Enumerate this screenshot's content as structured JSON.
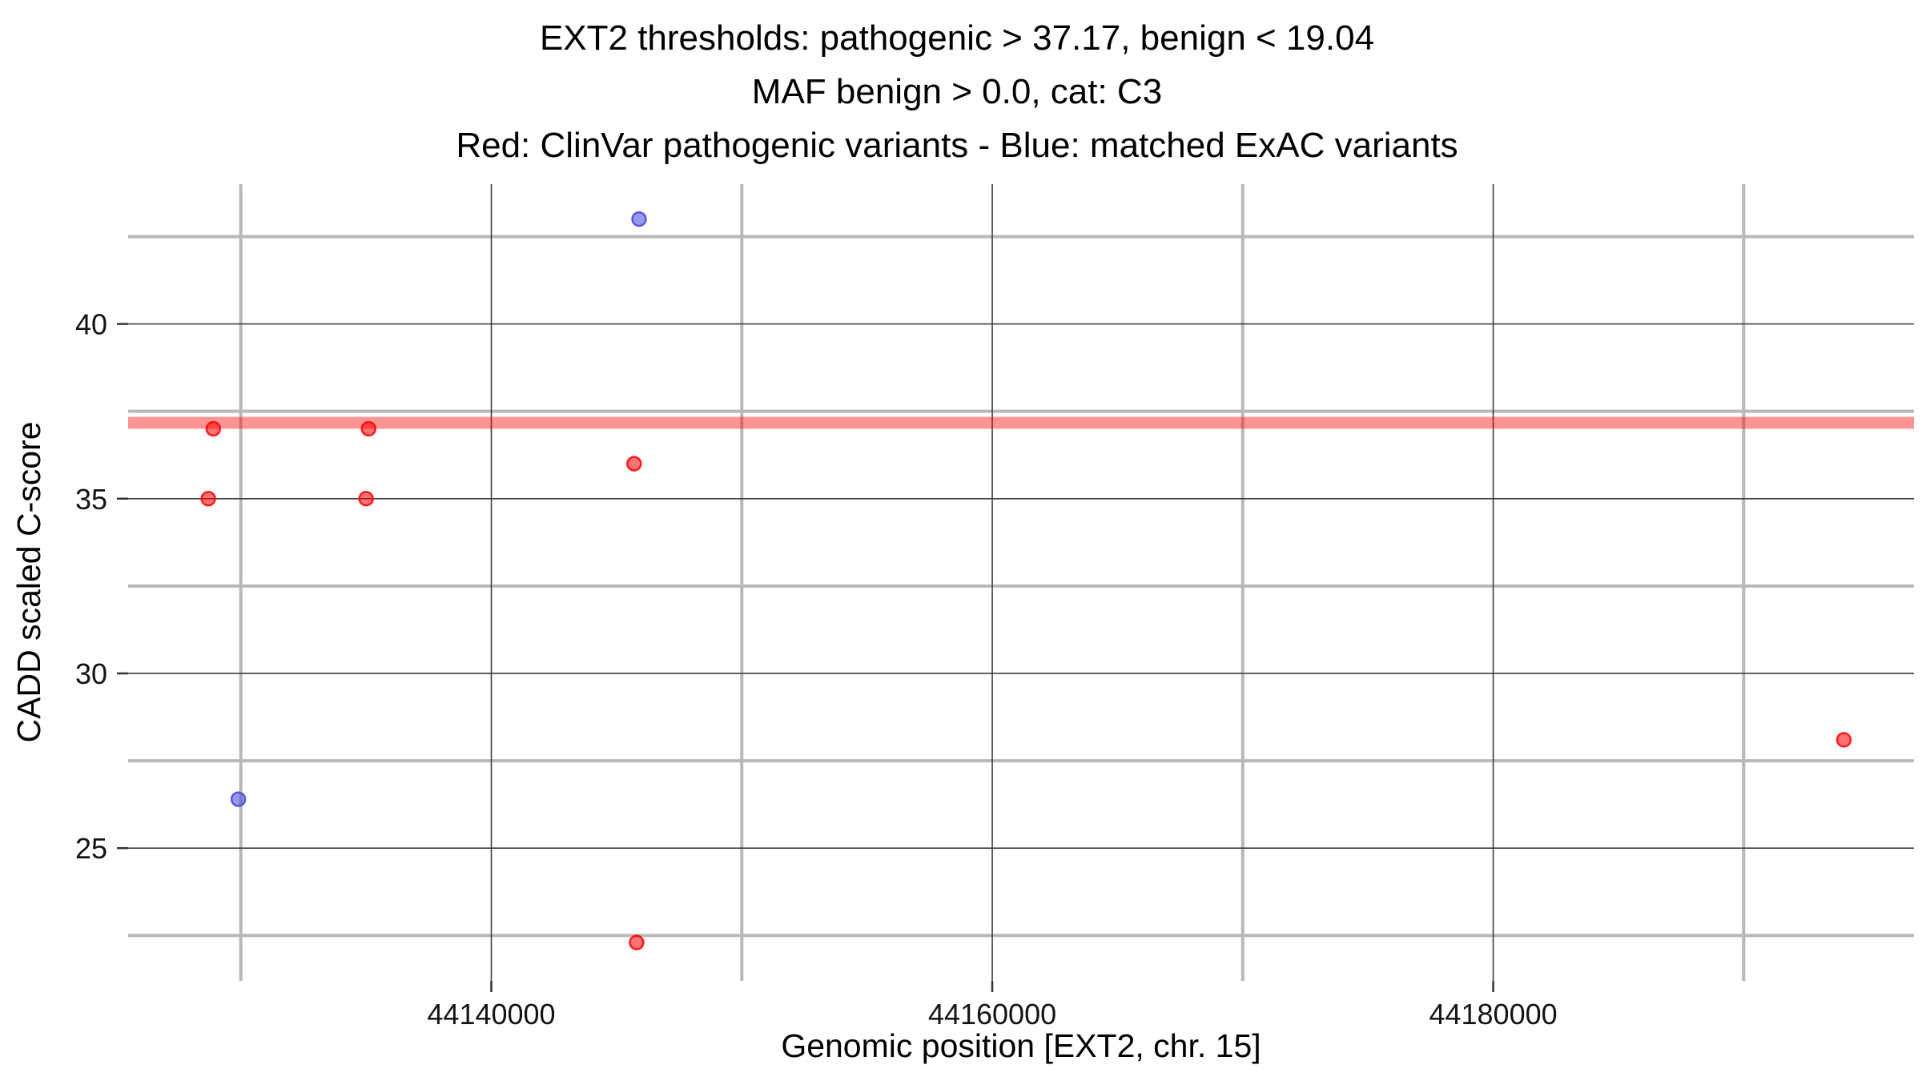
{
  "chart_data": {
    "type": "scatter",
    "title_lines": [
      "EXT2 thresholds: pathogenic > 37.17, benign < 19.04",
      "MAF benign > 0.0, cat: C3",
      "Red: ClinVar pathogenic variants - Blue: matched ExAC variants"
    ],
    "xlabel": "Genomic position [EXT2, chr. 15]",
    "ylabel": "CADD scaled C-score",
    "xlim": [
      44125500,
      44196800
    ],
    "ylim": [
      21.2,
      44.0
    ],
    "x_major_ticks": [
      44140000,
      44160000,
      44180000
    ],
    "x_tick_labels": [
      "44140000",
      "44160000",
      "44180000"
    ],
    "x_minor_ticks": [
      44130000,
      44150000,
      44170000,
      44190000
    ],
    "y_major_ticks": [
      25,
      30,
      35,
      40
    ],
    "y_tick_labels": [
      "25",
      "30",
      "35",
      "40"
    ],
    "y_minor_ticks": [
      22.5,
      27.5,
      32.5,
      37.5,
      42.5
    ],
    "grid": {
      "major_color": "#3d3d3d",
      "major_width": 1.6,
      "minor_color": "#b8b8b8",
      "minor_width": 4
    },
    "thresholds": {
      "pathogenic": 37.17,
      "benign": 19.04,
      "maf_benign": 0.0,
      "category": "C3"
    },
    "threshold_band": {
      "value": 37.17,
      "color": "#ff0000",
      "opacity": 0.42,
      "thickness_px": 15
    },
    "series": [
      {
        "name": "ClinVar pathogenic variants",
        "color": "#ff0000",
        "points": [
          [
            44128900,
            37.0
          ],
          [
            44128700,
            35.0
          ],
          [
            44135100,
            37.0
          ],
          [
            44135000,
            35.0
          ],
          [
            44145700,
            36.0
          ],
          [
            44145800,
            22.3
          ],
          [
            44194000,
            28.1
          ]
        ]
      },
      {
        "name": "matched ExAC variants",
        "color": "#4444dd",
        "points": [
          [
            44145900,
            43.0
          ],
          [
            44129900,
            26.4
          ]
        ]
      }
    ],
    "background": "#ffffff",
    "legend_position": "none"
  }
}
